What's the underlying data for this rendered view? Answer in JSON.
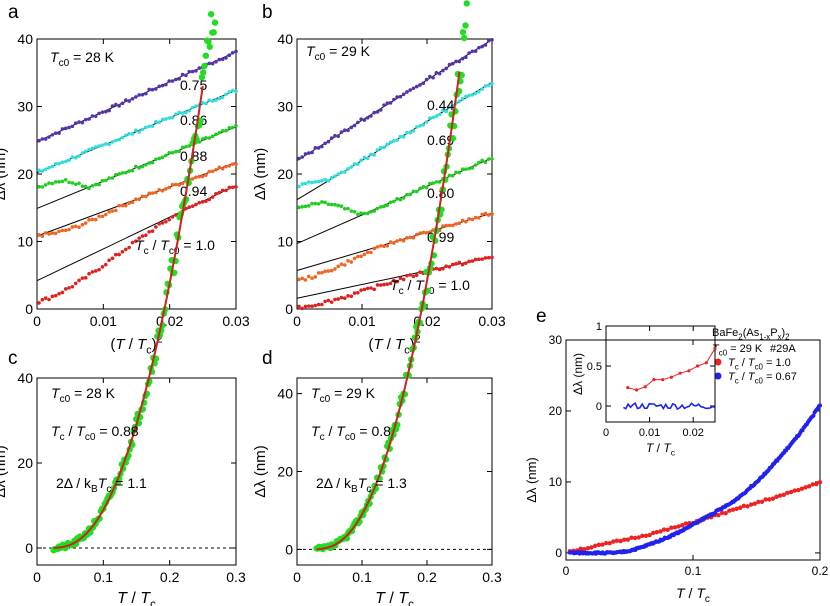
{
  "chart_data": [
    {
      "panel": "a",
      "type": "scatter",
      "xlabel": "(T / Tc)²",
      "ylabel": "Δλ (nm)",
      "xlim": [
        0,
        0.03
      ],
      "ylim": [
        0,
        40
      ],
      "xticks": [
        0,
        0.01,
        0.02,
        0.03
      ],
      "yticks": [
        0,
        10,
        20,
        30,
        40
      ],
      "xtick_labels": [
        "0",
        "0.01",
        "0.02",
        "0.03"
      ],
      "ytick_labels": [
        "0",
        "10",
        "20",
        "30",
        "40"
      ],
      "annotations": [
        "Tc0 = 28 K",
        "Tc / Tc0 = 1.0"
      ],
      "series": [
        {
          "label": "0.75",
          "color": "#5533aa",
          "offset": 24.8,
          "slope": 443,
          "fits": [
            [
              0,
              24.8
            ],
            [
              0.03,
              38.1
            ]
          ],
          "deviation": null
        },
        {
          "label": "0.86",
          "color": "#33dddd",
          "offset": 20.2,
          "slope": 407,
          "fits": [
            [
              0,
              20.2
            ],
            [
              0.03,
              32.4
            ]
          ],
          "deviation": null
        },
        {
          "label": "0.88",
          "color": "#22cc22",
          "offset": 18.0,
          "slope": 403,
          "fits": [
            [
              0,
              14.9
            ],
            [
              0.03,
              27.0
            ]
          ],
          "deviation": "flat"
        },
        {
          "label": "0.94",
          "color": "#ee6622",
          "offset": 11.0,
          "slope": 363,
          "fits": [
            [
              0,
              10.8
            ],
            [
              0.03,
              21.7
            ]
          ],
          "deviation": "sqrt"
        },
        {
          "label": "",
          "color": "#dd2222",
          "offset": 1.0,
          "slope": 470,
          "fits": [
            [
              0,
              4.2
            ],
            [
              0.03,
              18.3
            ]
          ],
          "deviation": "strong"
        }
      ]
    },
    {
      "panel": "b",
      "type": "scatter",
      "xlabel": "(T / Tc)²",
      "ylabel": "Δλ (nm)",
      "xlim": [
        0,
        0.03
      ],
      "ylim": [
        0,
        40
      ],
      "xticks": [
        0,
        0.01,
        0.02,
        0.03
      ],
      "yticks": [
        0,
        10,
        20,
        30,
        40
      ],
      "xtick_labels": [
        "0",
        "0.01",
        "0.02",
        "0.03"
      ],
      "ytick_labels": [
        "0",
        "10",
        "20",
        "30",
        "40"
      ],
      "annotations": [
        "Tc0 = 29 K",
        "Tc / Tc0 = 1.0"
      ],
      "series": [
        {
          "label": "0.44",
          "color": "#5533aa",
          "offset": 22.0,
          "slope": 597,
          "fits": [
            [
              0,
              22.0
            ],
            [
              0.03,
              39.9
            ]
          ],
          "deviation": null
        },
        {
          "label": "0.69",
          "color": "#33dddd",
          "offset": 18.0,
          "slope": 527,
          "fits": [
            [
              0,
              16.2
            ],
            [
              0.03,
              33.6
            ]
          ],
          "deviation": "flat"
        },
        {
          "label": "0.80",
          "color": "#22cc22",
          "offset": 14.8,
          "slope": 423,
          "fits": [
            [
              0,
              9.7
            ],
            [
              0.03,
              22.4
            ]
          ],
          "deviation": "flat"
        },
        {
          "label": "0.99",
          "color": "#ee6622",
          "offset": 4.2,
          "slope": 283,
          "fits": [
            [
              0,
              5.7
            ],
            [
              0.03,
              14.2
            ]
          ],
          "deviation": "sqrt"
        },
        {
          "label": "",
          "color": "#dd2222",
          "offset": 0.2,
          "slope": 203,
          "fits": [
            [
              0,
              1.6
            ],
            [
              0.03,
              7.7
            ]
          ],
          "deviation": "strong"
        }
      ]
    },
    {
      "panel": "c",
      "type": "scatter",
      "xlabel": "T / Tc",
      "ylabel": "Δλ (nm)",
      "xlim": [
        0,
        0.3
      ],
      "ylim": [
        -4,
        40
      ],
      "xticks": [
        0,
        0.1,
        0.2,
        0.3
      ],
      "yticks": [
        0,
        20,
        40
      ],
      "xtick_labels": [
        "0",
        "0.1",
        "0.2",
        "0.3"
      ],
      "ytick_labels": [
        "0",
        "20",
        "40"
      ],
      "annotations": [
        "Tc0 = 28 K",
        "Tc / Tc0 = 0.88",
        "2Δ / kBTc = 1.1"
      ],
      "points": {
        "color": "#22dd22",
        "x_start": 0.025,
        "x_end": 0.3,
        "gap": 1.1,
        "scale": 2700
      },
      "fit": {
        "color": "#cc2222",
        "x_start": 0.025,
        "x_end": 0.25
      }
    },
    {
      "panel": "d",
      "type": "scatter",
      "xlabel": "T / Tc",
      "ylabel": "Δλ (nm)",
      "xlim": [
        0,
        0.3
      ],
      "ylim": [
        -4,
        44
      ],
      "xticks": [
        0,
        0.1,
        0.2,
        0.3
      ],
      "yticks": [
        0,
        20,
        40
      ],
      "xtick_labels": [
        "0",
        "0.1",
        "0.2",
        "0.3"
      ],
      "ytick_labels": [
        "0",
        "20",
        "40"
      ],
      "annotations": [
        "Tc0 = 29 K",
        "Tc / Tc0 = 0.8",
        "2Δ / kBTc = 1.3"
      ],
      "points": {
        "color": "#22dd22",
        "x_start": 0.03,
        "x_end": 0.3,
        "gap": 1.3,
        "scale": 3300
      },
      "fit": {
        "color": "#cc2222",
        "x_start": 0.03,
        "x_end": 0.25
      }
    },
    {
      "panel": "e",
      "type": "scatter",
      "xlabel": "T / Tc",
      "ylabel": "Δλ (nm)",
      "xlim": [
        0,
        0.2
      ],
      "ylim": [
        -1,
        30
      ],
      "xticks": [
        0,
        0.1,
        0.2
      ],
      "yticks": [
        0,
        10,
        20,
        30
      ],
      "xtick_labels": [
        "0",
        "0.1",
        "0.2"
      ],
      "ytick_labels": [
        "0",
        "10",
        "20",
        "30"
      ],
      "legend_title": "BaFe2(As1-xPx)2",
      "sample": "#29A",
      "annotations": [
        "Tc0 = 29 K"
      ],
      "legend_position": "top-right",
      "series": [
        {
          "name": "Tc / Tc0 = 1.0",
          "color": "#ee2222",
          "x": [
            0.005,
            0.01,
            0.02,
            0.03,
            0.04,
            0.05,
            0.06,
            0.07,
            0.08,
            0.09,
            0.1,
            0.11,
            0.12,
            0.13,
            0.14,
            0.15,
            0.16,
            0.17,
            0.18,
            0.19,
            0.2
          ],
          "y": [
            0.3,
            0.5,
            0.8,
            1.2,
            1.6,
            2.0,
            2.4,
            2.8,
            3.3,
            3.8,
            4.3,
            4.8,
            5.4,
            5.9,
            6.5,
            7.0,
            7.6,
            8.1,
            8.7,
            9.3,
            10.0
          ]
        },
        {
          "name": "Tc / Tc0 = 0.67",
          "color": "#2222ee",
          "x": [
            0.005,
            0.02,
            0.04,
            0.05,
            0.06,
            0.07,
            0.08,
            0.09,
            0.1,
            0.11,
            0.12,
            0.13,
            0.14,
            0.15,
            0.16,
            0.17,
            0.18,
            0.19,
            0.2
          ],
          "y": [
            0.0,
            0.0,
            0.0,
            0.3,
            0.8,
            1.5,
            2.2,
            3.0,
            4.0,
            5.0,
            6.0,
            7.0,
            8.4,
            10.0,
            11.8,
            13.8,
            15.9,
            18.2,
            20.8
          ]
        }
      ],
      "inset": {
        "xlabel": "T / Tc",
        "ylabel": "Δλ (nm)",
        "xlim": [
          0,
          0.025
        ],
        "ylim": [
          -0.2,
          1.0
        ],
        "xticks": [
          0,
          0.01,
          0.02
        ],
        "yticks": [
          0,
          0.5,
          1
        ],
        "xtick_labels": [
          "0",
          "0.01",
          "0.02"
        ],
        "ytick_labels": [
          "0",
          "0.5",
          "1"
        ],
        "red": {
          "x": [
            0.005,
            0.007,
            0.009,
            0.011,
            0.013,
            0.015,
            0.017,
            0.019,
            0.021,
            0.023,
            0.025
          ],
          "y": [
            0.23,
            0.2,
            0.24,
            0.33,
            0.33,
            0.36,
            0.41,
            0.44,
            0.5,
            0.54,
            0.72
          ]
        },
        "blue": {
          "x_start": 0.004,
          "x_end": 0.025,
          "level": 0.0,
          "noise": 0.04
        }
      }
    }
  ],
  "panel_labels": [
    "a",
    "b",
    "c",
    "d",
    "e"
  ],
  "text": {
    "a_tc0": "Tc0 = 28 K",
    "a_labels": [
      "0.75",
      "0.86",
      "0.88",
      "0.94"
    ],
    "a_bottom": "Tc / Tc0 = 1.0",
    "b_tc0": "Tc0 = 29 K",
    "b_labels": [
      "0.44",
      "0.69",
      "0.80",
      "0.99"
    ],
    "b_bottom": "Tc / Tc0 = 1.0",
    "c_lines": [
      "Tc0 = 28 K",
      "Tc / Tc0 = 0.88",
      "2Δ / kBTc = 1.1"
    ],
    "d_lines": [
      "Tc0 = 29 K",
      "Tc / Tc0 = 0.8",
      "2Δ / kBTc = 1.3"
    ],
    "e_formula": "BaFe2(As1-xPx)2",
    "e_tc0": "Tc0 = 29 K",
    "e_sample": "#29A",
    "e_legend": [
      "Tc / Tc0 = 1.0",
      "Tc / Tc0 = 0.67"
    ]
  }
}
